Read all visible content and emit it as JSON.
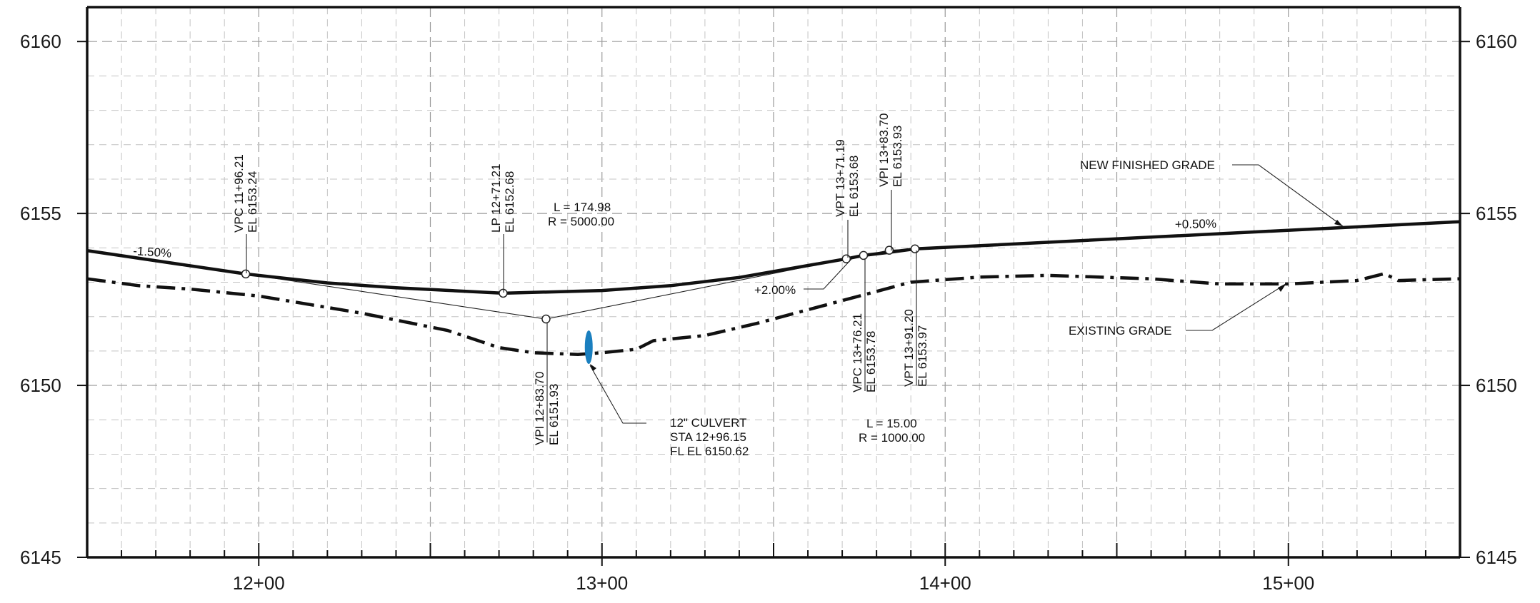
{
  "chart_data": {
    "type": "line",
    "x_unit": "feet (station)",
    "y_unit": "feet (elevation)",
    "xlim": [
      1150,
      1550
    ],
    "ylim": [
      6145,
      6160
    ],
    "y_ticks": [
      6145,
      6150,
      6155,
      6160
    ],
    "x_ticks": [
      {
        "station": 1200,
        "label": "12+00"
      },
      {
        "station": 1300,
        "label": "13+00"
      },
      {
        "station": 1400,
        "label": "14+00"
      },
      {
        "station": 1500,
        "label": "15+00"
      }
    ],
    "grid": true,
    "series": [
      {
        "name": "NEW FINISHED GRADE",
        "style": "solid",
        "points": [
          [
            1150,
            6153.92
          ],
          [
            1196.21,
            6153.24
          ],
          [
            1220,
            6152.98
          ],
          [
            1240,
            6152.84
          ],
          [
            1271.21,
            6152.68
          ],
          [
            1300,
            6152.76
          ],
          [
            1320,
            6152.9
          ],
          [
            1340,
            6153.14
          ],
          [
            1371.19,
            6153.68
          ],
          [
            1376.21,
            6153.78
          ],
          [
            1383.7,
            6153.87
          ],
          [
            1391.2,
            6153.97
          ],
          [
            1550,
            6154.76
          ]
        ]
      },
      {
        "name": "EXISTING GRADE",
        "style": "dashdot",
        "points": [
          [
            1150,
            6153.1
          ],
          [
            1165,
            6152.9
          ],
          [
            1180,
            6152.8
          ],
          [
            1200,
            6152.6
          ],
          [
            1230,
            6152.1
          ],
          [
            1255,
            6151.6
          ],
          [
            1270,
            6151.1
          ],
          [
            1280,
            6150.95
          ],
          [
            1293,
            6150.9
          ],
          [
            1300,
            6150.95
          ],
          [
            1310,
            6151.05
          ],
          [
            1315,
            6151.3
          ],
          [
            1330,
            6151.45
          ],
          [
            1345,
            6151.8
          ],
          [
            1360,
            6152.2
          ],
          [
            1375,
            6152.6
          ],
          [
            1390,
            6153.0
          ],
          [
            1410,
            6153.15
          ],
          [
            1430,
            6153.2
          ],
          [
            1460,
            6153.1
          ],
          [
            1480,
            6152.95
          ],
          [
            1500,
            6152.95
          ],
          [
            1520,
            6153.05
          ],
          [
            1528,
            6153.25
          ],
          [
            1532,
            6153.05
          ],
          [
            1550,
            6153.1
          ]
        ]
      },
      {
        "name": "tangent construction lines",
        "style": "thin",
        "points": [
          [
            1196.21,
            6153.24
          ],
          [
            1283.7,
            6151.93
          ],
          [
            1376.21,
            6153.78
          ],
          [
            1383.7,
            6153.93
          ],
          [
            1391.2,
            6153.97
          ]
        ]
      }
    ],
    "points": [
      {
        "name": "VPC 11+96.21",
        "station": 1196.21,
        "elev": 6153.24
      },
      {
        "name": "LP 12+71.21",
        "station": 1271.21,
        "elev": 6152.68
      },
      {
        "name": "VPI 12+83.70",
        "station": 1283.7,
        "elev": 6151.93
      },
      {
        "name": "VPT 13+71.19",
        "station": 1371.19,
        "elev": 6153.68
      },
      {
        "name": "VPC 13+76.21",
        "station": 1376.21,
        "elev": 6153.78
      },
      {
        "name": "VPI 13+83.70",
        "station": 1383.7,
        "elev": 6153.93
      },
      {
        "name": "VPT 13+91.20",
        "station": 1391.2,
        "elev": 6153.97
      }
    ],
    "culvert": {
      "station": 1296.15,
      "invert": 6150.62,
      "top": 6151.6,
      "color": "#1a7fbf"
    }
  },
  "labels": {
    "slope_left": "-1.50%",
    "slope_right": "+0.50%",
    "slope_mid": "+2.00%",
    "vc1_l": "L = 174.98",
    "vc1_r": "R = 5000.00",
    "vc2_l": "L = 15.00",
    "vc2_r": "R = 1000.00",
    "vpc1_a": "VPC 11+96.21",
    "vpc1_b": "EL 6153.24",
    "lp_a": "LP 12+71.21",
    "lp_b": "EL 6152.68",
    "vpi1_a": "VPI 12+83.70",
    "vpi1_b": "EL 6151.93",
    "vpt1_a": "VPT 13+71.19",
    "vpt1_b": "EL 6153.68",
    "vpi2_a": "VPI 13+83.70",
    "vpi2_b": "EL 6153.93",
    "vpc2_a": "VPC 13+76.21",
    "vpc2_b": "EL 6153.78",
    "vpt2_a": "VPT 13+91.20",
    "vpt2_b": "EL 6153.97",
    "culvert_1": "12\" CULVERT",
    "culvert_2": "STA 12+96.15",
    "culvert_3": "FL EL 6150.62",
    "new_grade": "NEW FINISHED GRADE",
    "existing_grade": "EXISTING GRADE"
  }
}
